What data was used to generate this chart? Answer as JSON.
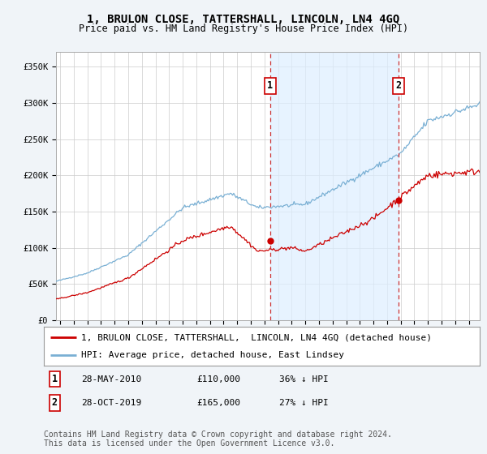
{
  "title": "1, BRULON CLOSE, TATTERSHALL, LINCOLN, LN4 4GQ",
  "subtitle": "Price paid vs. HM Land Registry's House Price Index (HPI)",
  "ylabel_ticks": [
    "£0",
    "£50K",
    "£100K",
    "£150K",
    "£200K",
    "£250K",
    "£300K",
    "£350K"
  ],
  "ytick_values": [
    0,
    50000,
    100000,
    150000,
    200000,
    250000,
    300000,
    350000
  ],
  "ylim": [
    0,
    370000
  ],
  "xlim_start": 1994.7,
  "xlim_end": 2025.8,
  "background_color": "#f0f4f8",
  "plot_bg_color": "#ffffff",
  "grid_color": "#cccccc",
  "red_line_color": "#cc0000",
  "blue_line_color": "#7ab0d4",
  "shade_color": "#ddeeff",
  "sale1_x": 2010.41,
  "sale1_y": 110000,
  "sale1_label": "1",
  "sale1_date": "28-MAY-2010",
  "sale1_price": "£110,000",
  "sale1_hpi": "36% ↓ HPI",
  "sale2_x": 2019.83,
  "sale2_y": 165000,
  "sale2_label": "2",
  "sale2_date": "28-OCT-2019",
  "sale2_price": "£165,000",
  "sale2_hpi": "27% ↓ HPI",
  "legend_line1": "1, BRULON CLOSE, TATTERSHALL,  LINCOLN, LN4 4GQ (detached house)",
  "legend_line2": "HPI: Average price, detached house, East Lindsey",
  "footer": "Contains HM Land Registry data © Crown copyright and database right 2024.\nThis data is licensed under the Open Government Licence v3.0.",
  "title_fontsize": 10,
  "subtitle_fontsize": 8.5,
  "tick_fontsize": 7.5,
  "legend_fontsize": 8,
  "footer_fontsize": 7
}
